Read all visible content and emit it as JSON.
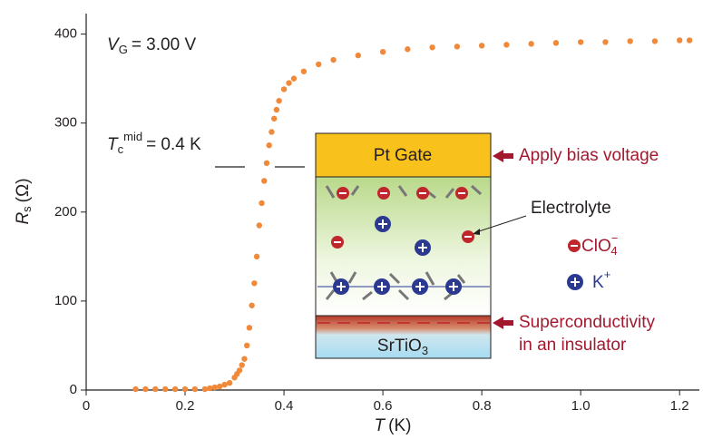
{
  "chart_data": {
    "type": "scatter",
    "x_label": {
      "symbol": "T",
      "unit": "(K)"
    },
    "y_label": {
      "symbol": "R",
      "sub": "s",
      "unit": "(Ω)"
    },
    "x": [
      0.1,
      0.12,
      0.14,
      0.16,
      0.18,
      0.2,
      0.22,
      0.24,
      0.25,
      0.26,
      0.27,
      0.28,
      0.29,
      0.3,
      0.305,
      0.31,
      0.315,
      0.32,
      0.325,
      0.33,
      0.335,
      0.34,
      0.345,
      0.35,
      0.355,
      0.36,
      0.365,
      0.37,
      0.375,
      0.38,
      0.385,
      0.39,
      0.4,
      0.41,
      0.42,
      0.44,
      0.47,
      0.5,
      0.55,
      0.6,
      0.65,
      0.7,
      0.75,
      0.8,
      0.85,
      0.9,
      0.95,
      1.0,
      1.05,
      1.1,
      1.15,
      1.2,
      1.22
    ],
    "values": [
      1,
      1,
      1,
      1,
      1,
      1,
      1,
      1,
      2,
      3,
      4,
      6,
      8,
      14,
      18,
      22,
      28,
      35,
      50,
      70,
      95,
      120,
      150,
      185,
      210,
      235,
      255,
      275,
      290,
      305,
      315,
      325,
      338,
      345,
      350,
      358,
      366,
      371,
      376,
      380,
      383,
      385,
      386,
      387,
      388,
      389,
      390,
      391,
      391,
      392,
      392,
      393,
      393
    ],
    "color": "#f0893a",
    "xlim": [
      0,
      1.24
    ],
    "ylim": [
      0,
      423
    ],
    "xticks": [
      0,
      0.2,
      0.4,
      0.6,
      0.8,
      {
        "value": 1,
        "label": "1.0"
      },
      1.2
    ],
    "yticks": [
      0,
      100,
      200,
      300,
      400
    ],
    "annotations": {
      "gate_voltage": {
        "symbol": "V",
        "sub": "G",
        "text": "= 3.00 V"
      },
      "tc": {
        "symbol": "T",
        "sub": "c",
        "sup": "mid",
        "text": "= 0.4 K"
      }
    },
    "inset": {
      "gate": "Pt  Gate",
      "electrolyte": "Electrolyte",
      "anion": {
        "text": "ClO",
        "sub": "4",
        "sup": "−"
      },
      "cation": {
        "text": "K",
        "sup": "+"
      },
      "substrate": {
        "text": "SrTiO",
        "sub": "3"
      },
      "bias": "Apply bias voltage",
      "sc": [
        "Superconductivity",
        "in an insulator"
      ]
    }
  }
}
